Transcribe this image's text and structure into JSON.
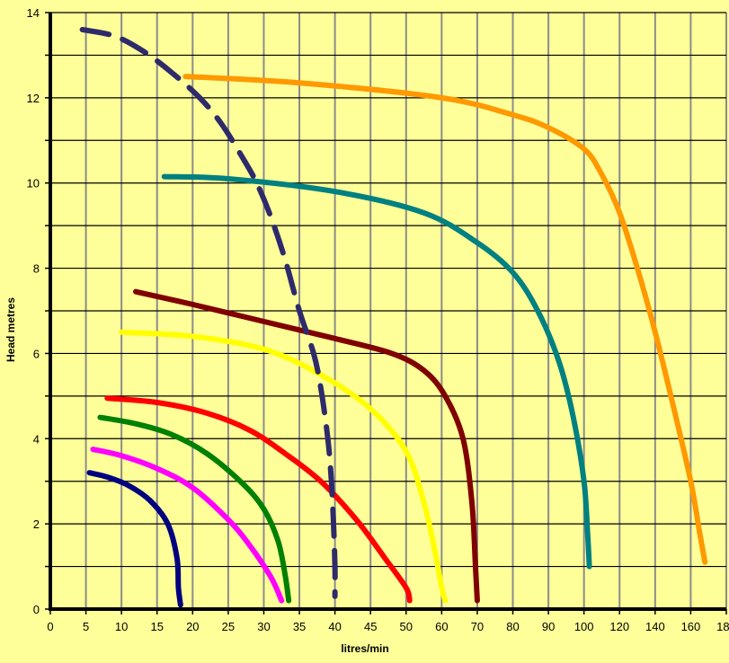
{
  "chart_data": {
    "type": "line",
    "title": "",
    "xlabel": "litres/min",
    "ylabel": "Head metres",
    "grid": true,
    "colors": {
      "background": "#ffff99",
      "grid": "#8c8c8c",
      "axis": "#000000"
    },
    "x_tick_labels": [
      "0",
      "5",
      "10",
      "15",
      "20",
      "25",
      "30",
      "35",
      "40",
      "45",
      "50",
      "60",
      "70",
      "80",
      "90",
      "100",
      "120",
      "140",
      "160",
      "180"
    ],
    "y_ticks": [
      0,
      2,
      4,
      6,
      8,
      10,
      12,
      14
    ],
    "ylim": [
      0,
      14
    ],
    "series": [
      {
        "color": "#000080",
        "dashed": false,
        "points": [
          [
            5.5,
            3.2
          ],
          [
            8,
            3.1
          ],
          [
            11,
            2.9
          ],
          [
            14,
            2.55
          ],
          [
            16.5,
            2.0
          ],
          [
            17.8,
            1.2
          ],
          [
            18,
            0.5
          ],
          [
            18.3,
            0.1
          ]
        ]
      },
      {
        "color": "#ff00ff",
        "dashed": false,
        "points": [
          [
            6,
            3.75
          ],
          [
            10,
            3.6
          ],
          [
            15,
            3.3
          ],
          [
            20,
            2.85
          ],
          [
            25,
            2.1
          ],
          [
            28,
            1.5
          ],
          [
            31,
            0.75
          ],
          [
            32.5,
            0.2
          ]
        ]
      },
      {
        "color": "#008000",
        "dashed": false,
        "points": [
          [
            7,
            4.5
          ],
          [
            12,
            4.35
          ],
          [
            17,
            4.1
          ],
          [
            22,
            3.65
          ],
          [
            27,
            2.95
          ],
          [
            30,
            2.35
          ],
          [
            32,
            1.6
          ],
          [
            33,
            0.8
          ],
          [
            33.5,
            0.2
          ]
        ]
      },
      {
        "color": "#ff0000",
        "dashed": false,
        "points": [
          [
            8,
            4.95
          ],
          [
            15,
            4.85
          ],
          [
            22,
            4.6
          ],
          [
            28,
            4.2
          ],
          [
            33,
            3.65
          ],
          [
            38,
            3.0
          ],
          [
            43,
            2.1
          ],
          [
            47,
            1.2
          ],
          [
            50,
            0.5
          ],
          [
            51,
            0.2
          ]
        ]
      },
      {
        "color": "#ffff00",
        "dashed": false,
        "points": [
          [
            10,
            6.5
          ],
          [
            20,
            6.4
          ],
          [
            30,
            6.1
          ],
          [
            38,
            5.5
          ],
          [
            45,
            4.7
          ],
          [
            50,
            3.7
          ],
          [
            55,
            2.5
          ],
          [
            58,
            1.4
          ],
          [
            60,
            0.5
          ],
          [
            61,
            0.2
          ]
        ]
      },
      {
        "color": "#800000",
        "dashed": false,
        "points": [
          [
            12,
            7.45
          ],
          [
            20,
            7.15
          ],
          [
            30,
            6.75
          ],
          [
            40,
            6.35
          ],
          [
            48,
            6.0
          ],
          [
            55,
            5.6
          ],
          [
            61,
            5.0
          ],
          [
            66,
            4.0
          ],
          [
            68.5,
            2.5
          ],
          [
            69.5,
            1.0
          ],
          [
            70,
            0.2
          ]
        ]
      },
      {
        "color": "#008080",
        "dashed": false,
        "points": [
          [
            16,
            10.15
          ],
          [
            25,
            10.1
          ],
          [
            40,
            9.8
          ],
          [
            55,
            9.3
          ],
          [
            70,
            8.6
          ],
          [
            80,
            7.9
          ],
          [
            87,
            7.0
          ],
          [
            93,
            5.8
          ],
          [
            97,
            4.5
          ],
          [
            100,
            3.0
          ],
          [
            102,
            1.8
          ],
          [
            103,
            1.0
          ]
        ]
      },
      {
        "color": "#ff9900",
        "dashed": false,
        "points": [
          [
            19,
            12.5
          ],
          [
            35,
            12.35
          ],
          [
            60,
            12.0
          ],
          [
            80,
            11.6
          ],
          [
            90,
            11.3
          ],
          [
            100,
            10.8
          ],
          [
            110,
            10.2
          ],
          [
            120,
            9.3
          ],
          [
            130,
            8.0
          ],
          [
            140,
            6.5
          ],
          [
            150,
            4.8
          ],
          [
            160,
            3.0
          ],
          [
            165,
            1.8
          ],
          [
            168,
            1.1
          ]
        ]
      },
      {
        "color": "#2e2a6b",
        "dashed": true,
        "points": [
          [
            4.5,
            13.6
          ],
          [
            9,
            13.45
          ],
          [
            13,
            13.1
          ],
          [
            17,
            12.6
          ],
          [
            21,
            12.0
          ],
          [
            24,
            11.4
          ],
          [
            27,
            10.6
          ],
          [
            29,
            10.0
          ],
          [
            31,
            9.2
          ],
          [
            33,
            8.2
          ],
          [
            35,
            7.0
          ],
          [
            37,
            6.0
          ],
          [
            38,
            5.2
          ],
          [
            39,
            4.0
          ],
          [
            39.5,
            3.0
          ],
          [
            39.8,
            2.0
          ],
          [
            40,
            1.0
          ],
          [
            40,
            0.3
          ]
        ]
      }
    ]
  }
}
